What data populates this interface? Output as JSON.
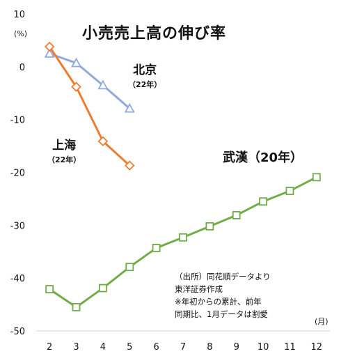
{
  "title": "小売売上高の伸び率",
  "y_unit": "(%)",
  "x_unit": "(月)",
  "labels": {
    "beijing": {
      "name": "北京",
      "sub": "（22年）"
    },
    "shanghai": {
      "name": "上海",
      "sub": "（22年）"
    },
    "wuhan": "武漢（20年）"
  },
  "note": [
    "（出所）同花順データより",
    "東洋証券作成",
    "※年初からの累計、前年",
    "同期比、1月データは割愛"
  ],
  "chart_data": {
    "type": "line",
    "x": [
      2,
      3,
      4,
      5,
      6,
      7,
      8,
      9,
      10,
      11,
      12
    ],
    "xlim": [
      1.5,
      12.5
    ],
    "ylim": [
      -50,
      10
    ],
    "yticks": [
      10,
      0,
      -10,
      -20,
      -30,
      -40,
      -50
    ],
    "grid": false,
    "series": [
      {
        "name": "北京（22年）",
        "color": "#8faadc",
        "marker": "triangle",
        "x": [
          2,
          3,
          4,
          5
        ],
        "values": [
          2.5,
          0.7,
          -3.5,
          -7.9
        ]
      },
      {
        "name": "上海（22年）",
        "color": "#ed7d31",
        "marker": "diamond",
        "x": [
          2,
          3,
          4,
          5
        ],
        "values": [
          3.8,
          -3.8,
          -14.1,
          -18.7
        ]
      },
      {
        "name": "武漢（20年）",
        "color": "#70ad47",
        "marker": "square",
        "x": [
          2,
          3,
          4,
          5,
          6,
          7,
          8,
          9,
          10,
          11,
          12
        ],
        "values": [
          -42.1,
          -45.5,
          -41.9,
          -37.9,
          -34.3,
          -32.3,
          -30.2,
          -28.1,
          -25.5,
          -23.5,
          -20.9
        ]
      }
    ]
  }
}
